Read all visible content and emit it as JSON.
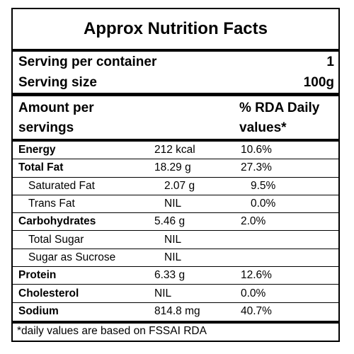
{
  "title": "Approx Nutrition Facts",
  "serving": {
    "per_container_label": "Serving per container",
    "per_container_value": "1",
    "size_label": "Serving size",
    "size_value": "100g"
  },
  "header": {
    "amount_line1": "Amount per",
    "amount_line2": "servings",
    "rda_line1": "% RDA Daily",
    "rda_line2": "values*"
  },
  "rows": [
    {
      "name": "Energy",
      "value": "212 kcal",
      "rda": "10.6%"
    },
    {
      "name": "Total Fat",
      "value": "18.29 g",
      "rda": "27.3%"
    },
    {
      "name": "Saturated Fat",
      "value": "2.07 g",
      "rda": "9.5%"
    },
    {
      "name": "Trans Fat",
      "value": "NIL",
      "rda": "0.0%"
    },
    {
      "name": "Carbohydrates",
      "value": "5.46 g",
      "rda": "2.0%"
    },
    {
      "name": "Total Sugar",
      "value": "NIL",
      "rda": ""
    },
    {
      "name": "Sugar as Sucrose",
      "value": "NIL",
      "rda": ""
    },
    {
      "name": "Protein",
      "value": "6.33 g",
      "rda": "12.6%"
    },
    {
      "name": "Cholesterol",
      "value": "NIL",
      "rda": "0.0%"
    },
    {
      "name": "Sodium",
      "value": "814.8 mg",
      "rda": "40.7%"
    }
  ],
  "footnote": "*daily values are based on FSSAI RDA"
}
